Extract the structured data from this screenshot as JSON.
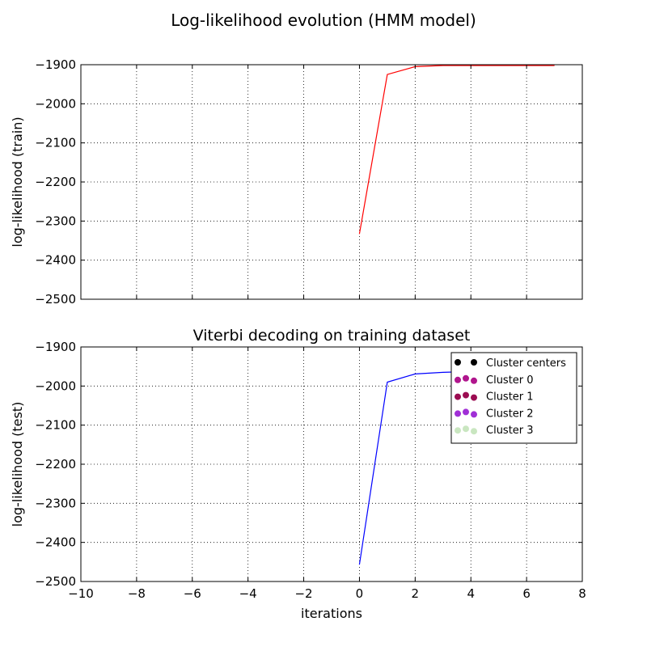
{
  "figure": {
    "title": "Log-likelihood evolution (HMM model)"
  },
  "chart_data": [
    {
      "type": "line",
      "title": "",
      "xlabel": "",
      "ylabel": "log-likelihood (train)",
      "xlim": [
        -10,
        8
      ],
      "ylim": [
        -2500,
        -1900
      ],
      "xticks": [
        -10,
        -8,
        -6,
        -4,
        -2,
        0,
        2,
        4,
        6,
        8
      ],
      "yticks": [
        -1900,
        -2000,
        -2100,
        -2200,
        -2300,
        -2400,
        -2500
      ],
      "xtick_labels": [
        "",
        "",
        "",
        "",
        "",
        "",
        "",
        "",
        "",
        ""
      ],
      "ytick_labels": [
        "−1900",
        "−2000",
        "−2100",
        "−2200",
        "−2300",
        "−2400",
        "−2500"
      ],
      "grid": true,
      "series": [
        {
          "color": "#ff0000",
          "x": [
            0,
            1,
            2,
            3,
            4,
            5,
            6,
            7
          ],
          "y": [
            -2333,
            -1925,
            -1905,
            -1902,
            -1902,
            -1902,
            -1902,
            -1902
          ]
        }
      ],
      "legend": null
    },
    {
      "type": "line",
      "title": "Viterbi decoding on training dataset",
      "xlabel": "iterations",
      "ylabel": "log-likelihood (test)",
      "xlim": [
        -10,
        8
      ],
      "ylim": [
        -2500,
        -1900
      ],
      "xticks": [
        -10,
        -8,
        -6,
        -4,
        -2,
        0,
        2,
        4,
        6,
        8
      ],
      "yticks": [
        -1900,
        -2000,
        -2100,
        -2200,
        -2300,
        -2400,
        -2500
      ],
      "xtick_labels": [
        "−10",
        "−8",
        "−6",
        "−4",
        "−2",
        "0",
        "2",
        "4",
        "6",
        "8"
      ],
      "ytick_labels": [
        "−1900",
        "−2000",
        "−2100",
        "−2200",
        "−2300",
        "−2400",
        "−2500"
      ],
      "grid": true,
      "series": [
        {
          "color": "#0000ff",
          "x": [
            0,
            1,
            2,
            3,
            4,
            5,
            6,
            7
          ],
          "y": [
            -2457,
            -1990,
            -1969,
            -1965,
            -1963,
            -1963,
            -1963,
            -1963
          ]
        }
      ],
      "legend": {
        "placement": "top-right",
        "entries": [
          {
            "label": "Cluster centers",
            "color": "#000000"
          },
          {
            "label": "Cluster 0",
            "color": "#b0158d"
          },
          {
            "label": "Cluster 1",
            "color": "#9c0d52"
          },
          {
            "label": "Cluster 2",
            "color": "#a02fd6"
          },
          {
            "label": "Cluster 3",
            "color": "#c9e6c0"
          }
        ]
      }
    }
  ]
}
